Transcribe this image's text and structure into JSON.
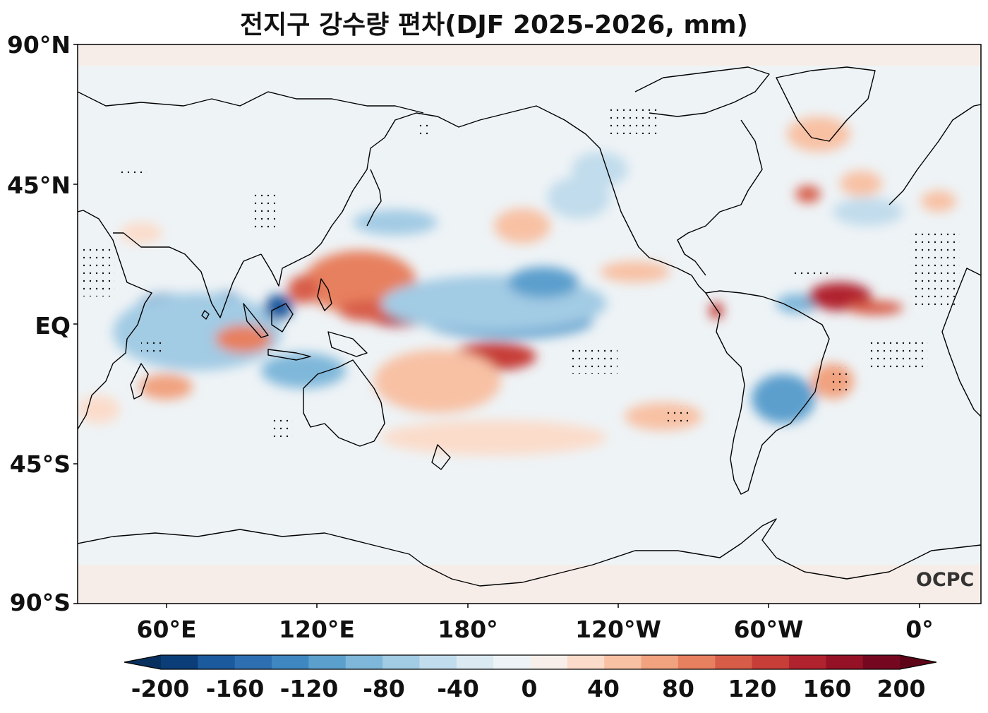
{
  "title": "전지구 강수량 편차(DJF 2025-2026, mm)",
  "logo": "OCPC",
  "latitude_labels": [
    "90°N",
    "45°N",
    "EQ",
    "45°S",
    "90°S"
  ],
  "longitude_labels": [
    "60°E",
    "120°E",
    "180°",
    "120°W",
    "60°W",
    "0°"
  ],
  "colorbar": {
    "labels": [
      "-200",
      "-160",
      "-120",
      "-80",
      "-40",
      "0",
      "40",
      "80",
      "120",
      "160",
      "200"
    ],
    "levels": [
      -200,
      -180,
      -160,
      -140,
      -120,
      -100,
      -80,
      -60,
      -40,
      -20,
      0,
      20,
      40,
      60,
      80,
      100,
      120,
      140,
      160,
      180,
      200
    ],
    "colors": [
      "#0b3e78",
      "#1c5a9e",
      "#2e6fb2",
      "#3f87c0",
      "#5b9fcd",
      "#7fb7da",
      "#a2cbe4",
      "#c1dcec",
      "#dae9f2",
      "#edf3f6",
      "#f8efea",
      "#fbdcca",
      "#f8c1a4",
      "#f1a27f",
      "#e7805f",
      "#d85d48",
      "#c73d38",
      "#b1222f",
      "#951226",
      "#750820"
    ],
    "under_color": "#08305e",
    "over_color": "#5e0418"
  },
  "anomalies": [
    {
      "region": "Philippine Sea / W Pacific",
      "sign": "positive",
      "strength": 0.9
    },
    {
      "region": "Equatorial Central Pacific north",
      "sign": "positive",
      "strength": 0.85
    },
    {
      "region": "SW Pacific / SPCZ",
      "sign": "positive",
      "strength": 0.75
    },
    {
      "region": "Tropical N Atlantic",
      "sign": "positive",
      "strength": 0.8
    },
    {
      "region": "Indian Ocean south of equator",
      "sign": "negative",
      "strength": 0.85
    },
    {
      "region": "Arabian Sea / West Indian Ocean",
      "sign": "negative",
      "strength": 0.7
    },
    {
      "region": "Equatorial Pacific band",
      "sign": "negative",
      "strength": 0.6
    },
    {
      "region": "SE South America",
      "sign": "negative",
      "strength": 0.6
    },
    {
      "region": "South Indian Ocean",
      "sign": "positive",
      "strength": 0.45
    },
    {
      "region": "Sulawesi Sea",
      "sign": "negative",
      "strength": 0.75
    }
  ]
}
